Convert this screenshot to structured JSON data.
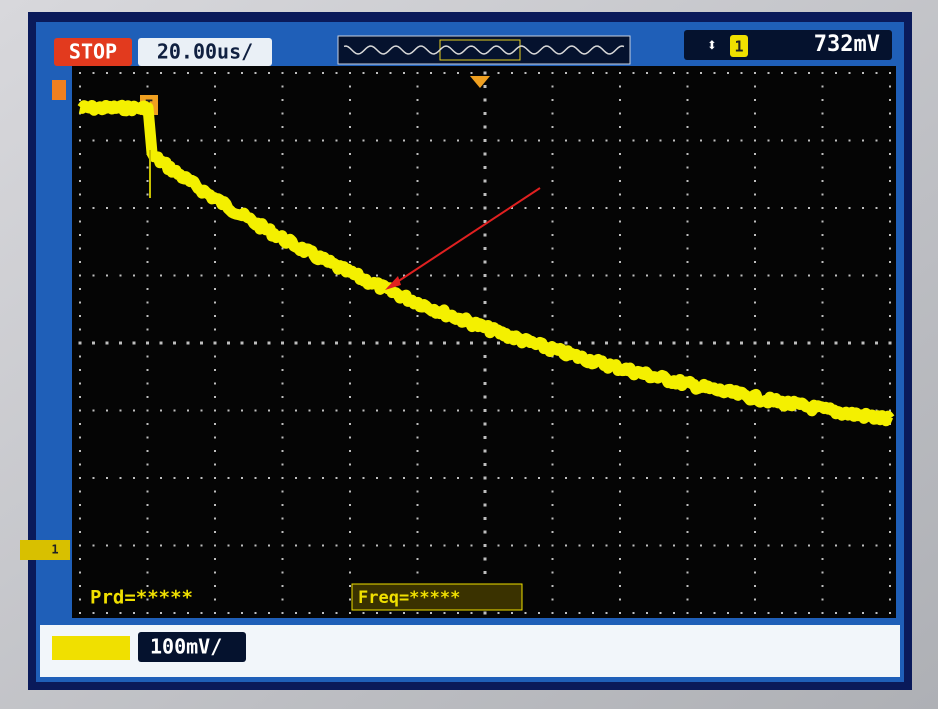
{
  "header": {
    "status": "STOP",
    "timebase": "20.00us/",
    "trigger_channel": "1",
    "trigger_level": "732mV"
  },
  "trigger_marker": "T",
  "channel_marker": "1",
  "measurements": [
    "Prd=*****",
    "Freq=*****"
  ],
  "channel_scale": "100mV/"
}
